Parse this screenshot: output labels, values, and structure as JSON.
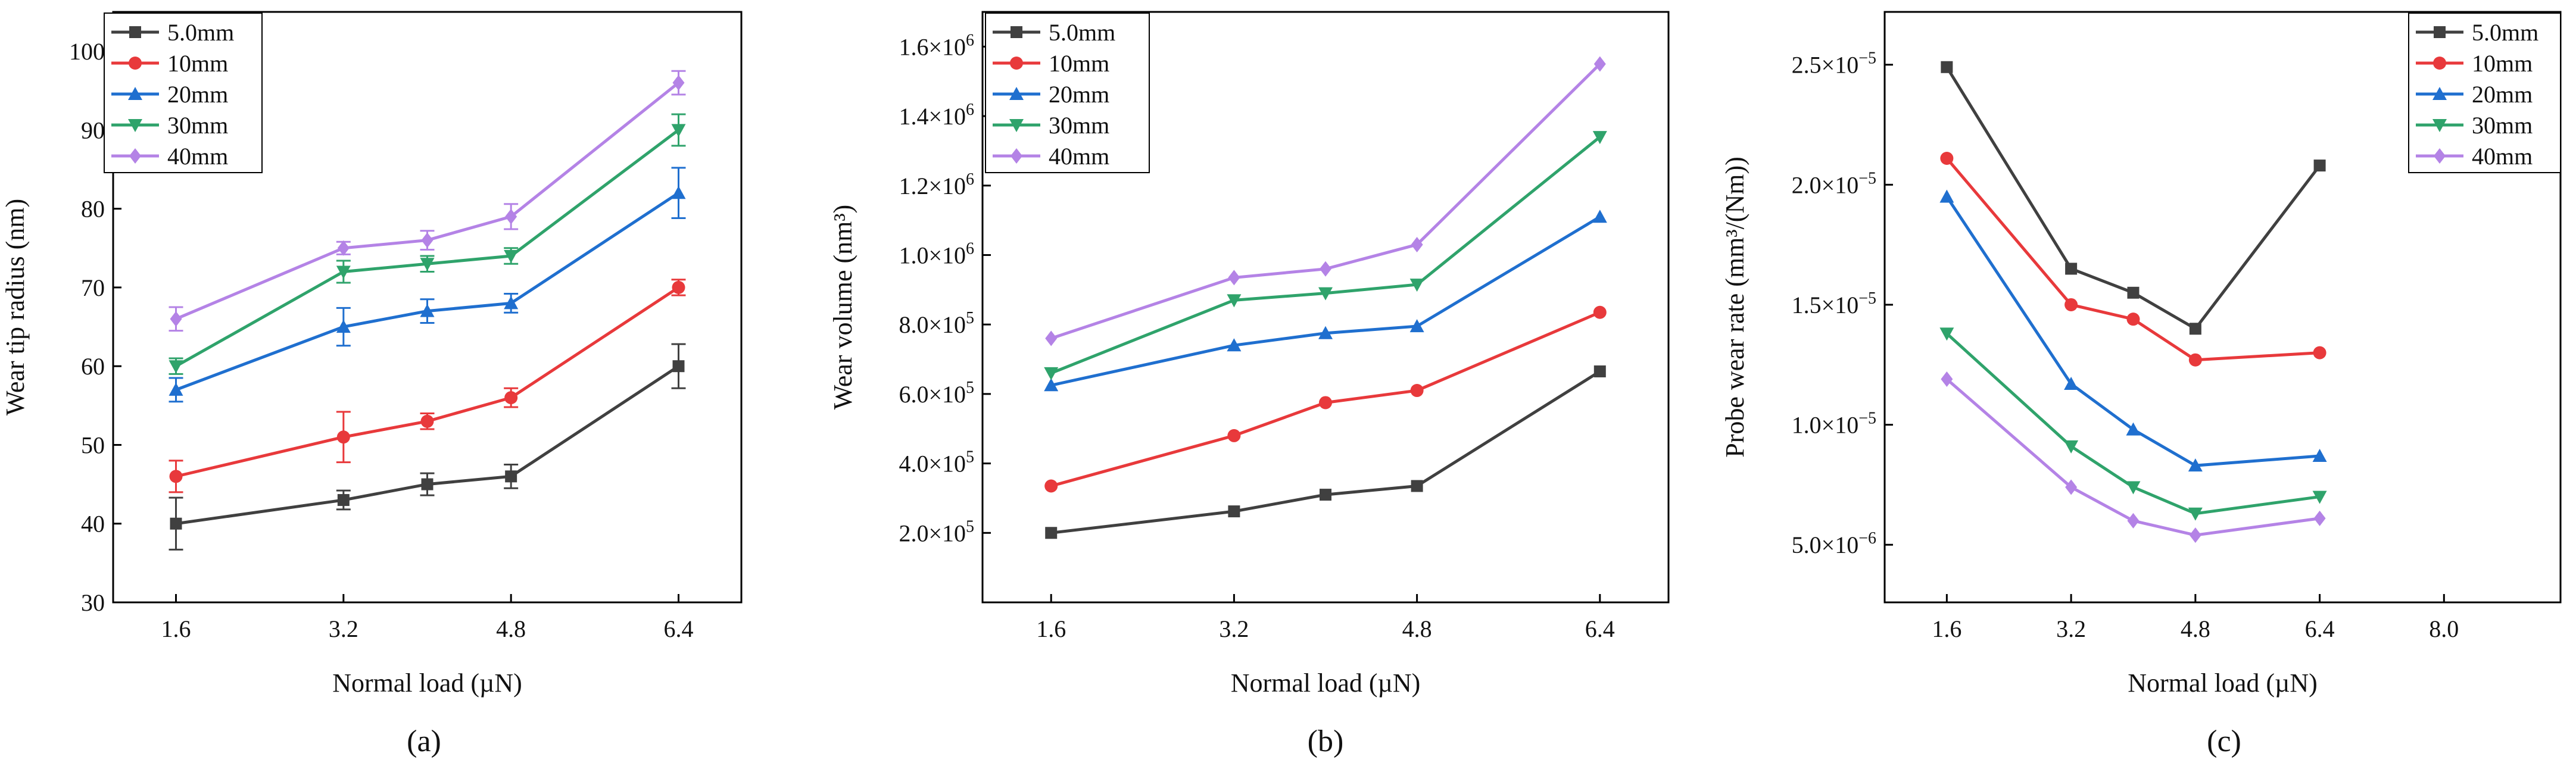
{
  "figure": {
    "panel_labels": [
      "(a)",
      "(b)",
      "(c)"
    ]
  },
  "chart_data": [
    {
      "type": "line",
      "panel": "(a)",
      "xlabel": "Normal load (µN)",
      "ylabel": "Wear tip radius (nm)",
      "xlim": [
        1.0,
        7.0
      ],
      "ylim": [
        30,
        105
      ],
      "xticks": [
        1.6,
        3.2,
        4.8,
        6.4
      ],
      "xtick_labels": [
        "1.6",
        "3.2",
        "4.8",
        "6.4"
      ],
      "yticks": [
        30,
        40,
        50,
        60,
        70,
        80,
        90,
        100
      ],
      "ytick_labels": [
        "30",
        "40",
        "50",
        "60",
        "70",
        "80",
        "90",
        "100"
      ],
      "legend_position": "top-left",
      "x": [
        1.6,
        3.2,
        4.0,
        4.8,
        6.4
      ],
      "series": [
        {
          "name": "5.0mm",
          "color": "#404040",
          "marker": "square",
          "values": [
            40,
            43,
            45,
            46,
            60
          ],
          "errors": [
            3.3,
            1.2,
            1.4,
            1.5,
            2.8
          ]
        },
        {
          "name": "10mm",
          "color": "#e8393b",
          "marker": "circle",
          "values": [
            46,
            51,
            53,
            56,
            70
          ],
          "errors": [
            2.0,
            3.2,
            1.0,
            1.2,
            1.0
          ]
        },
        {
          "name": "20mm",
          "color": "#1f6fcf",
          "marker": "triangle-up",
          "values": [
            57,
            65,
            67,
            68,
            82
          ],
          "errors": [
            1.5,
            2.4,
            1.5,
            1.2,
            3.2
          ]
        },
        {
          "name": "30mm",
          "color": "#2fa36b",
          "marker": "triangle-down",
          "values": [
            60,
            72,
            73,
            74,
            90
          ],
          "errors": [
            1.0,
            1.4,
            1.0,
            1.0,
            2.0
          ]
        },
        {
          "name": "40mm",
          "color": "#b483e6",
          "marker": "diamond",
          "values": [
            66,
            75,
            76,
            79,
            96
          ],
          "errors": [
            1.5,
            0.8,
            1.2,
            1.6,
            1.5
          ]
        }
      ]
    },
    {
      "type": "line",
      "panel": "(b)",
      "xlabel": "Normal load (µN)",
      "ylabel": "Wear volume (nm³)",
      "xlim": [
        1.0,
        7.0
      ],
      "ylim": [
        0,
        1700000
      ],
      "xticks": [
        1.6,
        3.2,
        4.8,
        6.4
      ],
      "xtick_labels": [
        "1.6",
        "3.2",
        "4.8",
        "6.4"
      ],
      "yticks": [
        200000,
        400000,
        600000,
        800000,
        1000000,
        1200000,
        1400000,
        1600000
      ],
      "ytick_labels": [
        {
          "mant": "2.0×10",
          "exp": "5"
        },
        {
          "mant": "4.0×10",
          "exp": "5"
        },
        {
          "mant": "6.0×10",
          "exp": "5"
        },
        {
          "mant": "8.0×10",
          "exp": "5"
        },
        {
          "mant": "1.0×10",
          "exp": "6"
        },
        {
          "mant": "1.2×10",
          "exp": "6"
        },
        {
          "mant": "1.4×10",
          "exp": "6"
        },
        {
          "mant": "1.6×10",
          "exp": "6"
        }
      ],
      "legend_position": "top-left",
      "x": [
        1.6,
        3.2,
        4.0,
        4.8,
        6.4
      ],
      "series": [
        {
          "name": "5.0mm",
          "color": "#404040",
          "marker": "square",
          "values": [
            200000,
            262000,
            310000,
            335000,
            665000
          ]
        },
        {
          "name": "10mm",
          "color": "#e8393b",
          "marker": "circle",
          "values": [
            335000,
            480000,
            575000,
            610000,
            835000
          ]
        },
        {
          "name": "20mm",
          "color": "#1f6fcf",
          "marker": "triangle-up",
          "values": [
            625000,
            740000,
            775000,
            795000,
            1110000
          ]
        },
        {
          "name": "30mm",
          "color": "#2fa36b",
          "marker": "triangle-down",
          "values": [
            660000,
            870000,
            890000,
            915000,
            1340000
          ]
        },
        {
          "name": "40mm",
          "color": "#b483e6",
          "marker": "diamond",
          "values": [
            760000,
            935000,
            960000,
            1030000,
            1550000
          ]
        }
      ]
    },
    {
      "type": "line",
      "panel": "(c)",
      "xlabel": "Normal load (µN)",
      "ylabel": "Probe wear rate (mm³/(Nm))",
      "xlim": [
        0.8,
        9.5
      ],
      "ylim": [
        2.6e-06,
        2.72e-05
      ],
      "xticks": [
        1.6,
        3.2,
        4.8,
        6.4,
        8.0
      ],
      "xtick_labels": [
        "1.6",
        "3.2",
        "4.8",
        "6.4",
        "8.0"
      ],
      "yticks": [
        5e-06,
        1e-05,
        1.5e-05,
        2e-05,
        2.5e-05
      ],
      "ytick_labels": [
        {
          "mant": "5.0×10",
          "exp": "−6"
        },
        {
          "mant": "1.0×10",
          "exp": "−5"
        },
        {
          "mant": "1.5×10",
          "exp": "−5"
        },
        {
          "mant": "2.0×10",
          "exp": "−5"
        },
        {
          "mant": "2.5×10",
          "exp": "−5"
        }
      ],
      "legend_position": "top-right",
      "x": [
        1.6,
        3.2,
        4.0,
        4.8,
        6.4
      ],
      "series": [
        {
          "name": "5.0mm",
          "color": "#404040",
          "marker": "square",
          "values": [
            2.49e-05,
            1.65e-05,
            1.55e-05,
            1.4e-05,
            2.08e-05
          ]
        },
        {
          "name": "10mm",
          "color": "#e8393b",
          "marker": "circle",
          "values": [
            2.11e-05,
            1.5e-05,
            1.44e-05,
            1.27e-05,
            1.3e-05
          ]
        },
        {
          "name": "20mm",
          "color": "#1f6fcf",
          "marker": "triangle-up",
          "values": [
            1.95e-05,
            1.17e-05,
            9.8e-06,
            8.3e-06,
            8.7e-06
          ]
        },
        {
          "name": "30mm",
          "color": "#2fa36b",
          "marker": "triangle-down",
          "values": [
            1.38e-05,
            9.1e-06,
            7.4e-06,
            6.3e-06,
            7e-06
          ]
        },
        {
          "name": "40mm",
          "color": "#b483e6",
          "marker": "diamond",
          "values": [
            1.19e-05,
            7.4e-06,
            6e-06,
            5.4e-06,
            6.1e-06
          ]
        }
      ]
    }
  ]
}
